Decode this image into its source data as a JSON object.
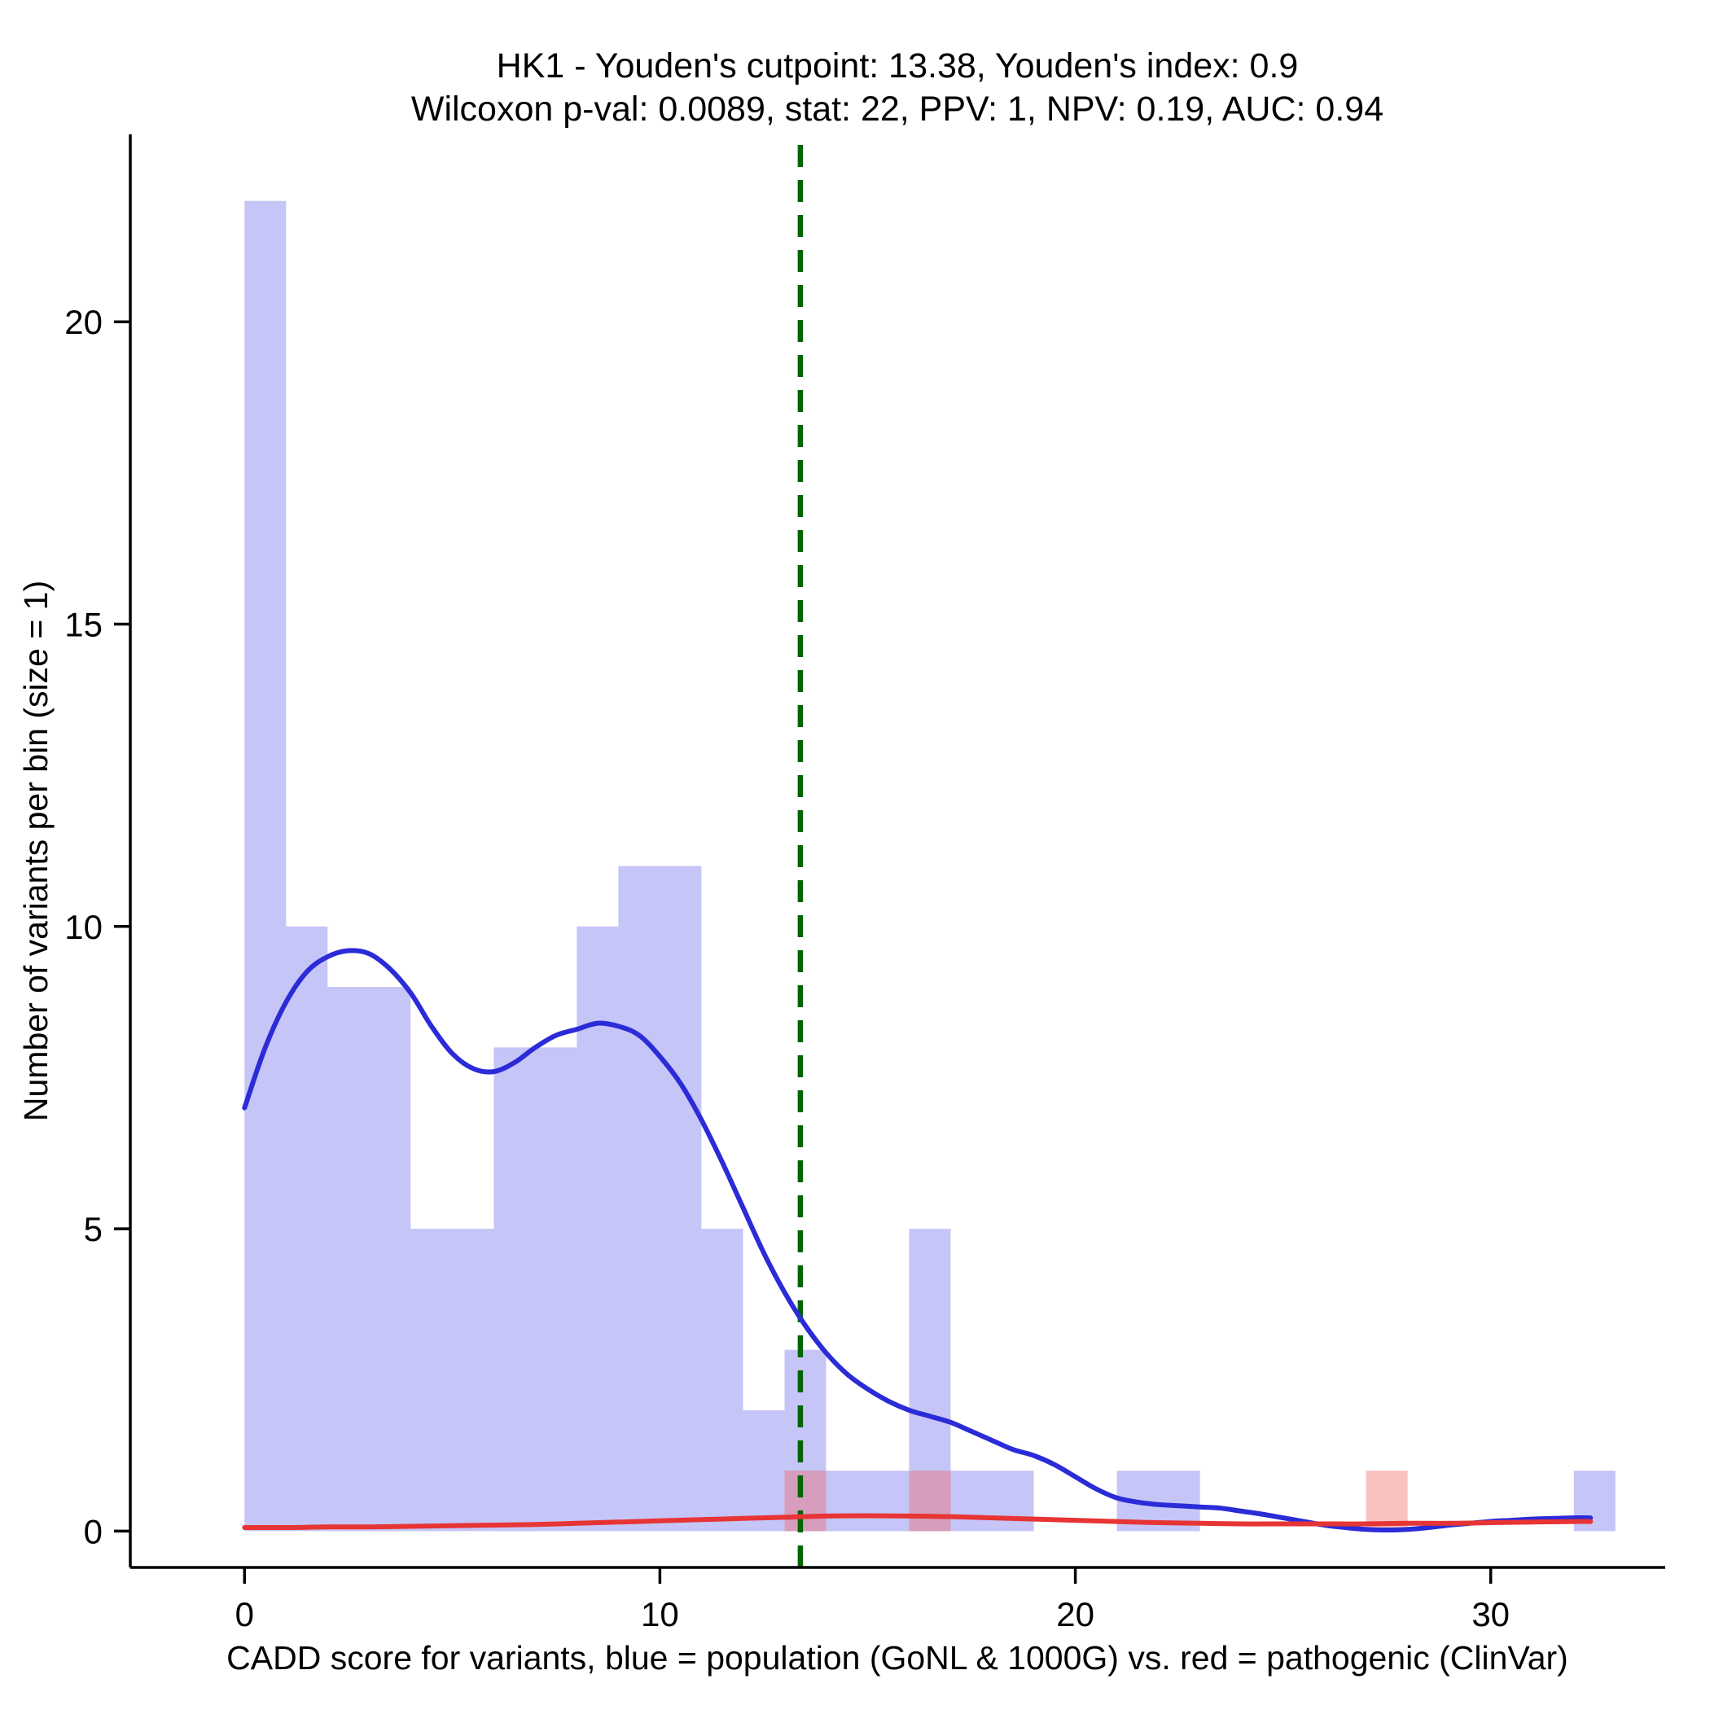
{
  "title": {
    "line1": "HK1 - Youden's cutpoint: 13.38, Youden's index: 0.9",
    "line2": "Wilcoxon p-val: 0.0089, stat: 22, PPV: 1, NPV: 0.19, AUC: 0.94"
  },
  "chart_data": {
    "type": "histogram+density",
    "title": "HK1 - Youden's cutpoint: 13.38, Youden's index: 0.9",
    "subtitle": "Wilcoxon p-val: 0.0089, stat: 22, PPV: 1, NPV: 0.19, AUC: 0.94",
    "xlabel": "CADD score for variants, blue = population (GoNL & 1000G) vs. red = pathogenic (ClinVar)",
    "ylabel": "Number of variants per bin (size = 1)",
    "x_ticks": [
      0,
      10,
      20,
      30
    ],
    "y_ticks": [
      0,
      5,
      10,
      15,
      20
    ],
    "xlim": [
      -2.75,
      34.2
    ],
    "ylim": [
      -0.6,
      23.1
    ],
    "bin_width": 1,
    "grid": "off",
    "legend": "none",
    "cutpoint": {
      "x": 13.38,
      "color": "#006400",
      "style": "dashed"
    },
    "histograms": [
      {
        "id": "population",
        "name": "population (GoNL & 1000G)",
        "fill": "rgba(88,88,232,0.35)",
        "bins": [
          [
            0,
            22
          ],
          [
            1,
            10
          ],
          [
            2,
            9
          ],
          [
            3,
            9
          ],
          [
            4,
            5
          ],
          [
            5,
            5
          ],
          [
            6,
            8
          ],
          [
            7,
            8
          ],
          [
            8,
            10
          ],
          [
            9,
            11
          ],
          [
            10,
            11
          ],
          [
            11,
            5
          ],
          [
            12,
            2
          ],
          [
            13,
            3
          ],
          [
            14,
            1
          ],
          [
            15,
            1
          ],
          [
            16,
            5
          ],
          [
            17,
            1
          ],
          [
            18,
            1
          ],
          [
            21,
            1
          ],
          [
            22,
            1
          ],
          [
            32,
            1
          ]
        ]
      },
      {
        "id": "pathogenic",
        "name": "pathogenic (ClinVar)",
        "fill": "rgba(242,92,92,0.38)",
        "bins": [
          [
            13,
            1
          ],
          [
            16,
            1
          ],
          [
            27,
            1
          ]
        ]
      }
    ],
    "densities": [
      {
        "id": "population",
        "name": "population (GoNL & 1000G)",
        "color": "#2b2bd8",
        "points": [
          [
            0,
            7.0
          ],
          [
            0.5,
            8.0
          ],
          [
            1,
            8.75
          ],
          [
            1.5,
            9.25
          ],
          [
            2,
            9.5
          ],
          [
            2.5,
            9.6
          ],
          [
            3,
            9.55
          ],
          [
            3.5,
            9.3
          ],
          [
            4,
            8.9
          ],
          [
            4.5,
            8.35
          ],
          [
            5,
            7.9
          ],
          [
            5.5,
            7.65
          ],
          [
            6,
            7.6
          ],
          [
            6.5,
            7.75
          ],
          [
            7,
            8.0
          ],
          [
            7.5,
            8.2
          ],
          [
            8,
            8.3
          ],
          [
            8.5,
            8.4
          ],
          [
            9,
            8.35
          ],
          [
            9.5,
            8.2
          ],
          [
            10,
            7.85
          ],
          [
            10.5,
            7.4
          ],
          [
            11,
            6.8
          ],
          [
            11.5,
            6.1
          ],
          [
            12,
            5.35
          ],
          [
            12.5,
            4.6
          ],
          [
            13,
            3.95
          ],
          [
            13.5,
            3.4
          ],
          [
            14,
            2.95
          ],
          [
            14.5,
            2.6
          ],
          [
            15,
            2.35
          ],
          [
            15.5,
            2.15
          ],
          [
            16,
            2.0
          ],
          [
            16.5,
            1.9
          ],
          [
            17,
            1.8
          ],
          [
            17.5,
            1.65
          ],
          [
            18,
            1.5
          ],
          [
            18.5,
            1.35
          ],
          [
            19,
            1.25
          ],
          [
            19.5,
            1.1
          ],
          [
            20,
            0.9
          ],
          [
            20.5,
            0.7
          ],
          [
            21,
            0.55
          ],
          [
            21.5,
            0.48
          ],
          [
            22,
            0.44
          ],
          [
            22.5,
            0.42
          ],
          [
            23,
            0.4
          ],
          [
            23.5,
            0.38
          ],
          [
            24,
            0.33
          ],
          [
            24.5,
            0.28
          ],
          [
            25,
            0.22
          ],
          [
            25.5,
            0.16
          ],
          [
            26,
            0.1
          ],
          [
            26.5,
            0.06
          ],
          [
            27,
            0.03
          ],
          [
            27.5,
            0.02
          ],
          [
            28,
            0.03
          ],
          [
            28.5,
            0.06
          ],
          [
            29,
            0.1
          ],
          [
            29.5,
            0.13
          ],
          [
            30,
            0.16
          ],
          [
            30.5,
            0.18
          ],
          [
            31,
            0.2
          ],
          [
            31.5,
            0.21
          ],
          [
            32,
            0.22
          ],
          [
            32.4,
            0.22
          ]
        ]
      },
      {
        "id": "pathogenic",
        "name": "pathogenic (ClinVar)",
        "color": "#e73434",
        "points": [
          [
            0,
            0.06
          ],
          [
            1,
            0.06
          ],
          [
            2,
            0.07
          ],
          [
            3,
            0.07
          ],
          [
            4,
            0.08
          ],
          [
            5,
            0.09
          ],
          [
            6,
            0.1
          ],
          [
            7,
            0.11
          ],
          [
            8,
            0.13
          ],
          [
            9,
            0.15
          ],
          [
            10,
            0.17
          ],
          [
            11,
            0.19
          ],
          [
            12,
            0.21
          ],
          [
            13,
            0.23
          ],
          [
            14,
            0.25
          ],
          [
            15,
            0.255
          ],
          [
            16,
            0.25
          ],
          [
            17,
            0.24
          ],
          [
            18,
            0.22
          ],
          [
            19,
            0.2
          ],
          [
            20,
            0.18
          ],
          [
            21,
            0.16
          ],
          [
            22,
            0.14
          ],
          [
            23,
            0.13
          ],
          [
            24,
            0.12
          ],
          [
            25,
            0.12
          ],
          [
            26,
            0.12
          ],
          [
            27,
            0.12
          ],
          [
            28,
            0.13
          ],
          [
            29,
            0.13
          ],
          [
            30,
            0.14
          ],
          [
            31,
            0.15
          ],
          [
            32,
            0.16
          ],
          [
            32.4,
            0.16
          ]
        ]
      }
    ]
  }
}
